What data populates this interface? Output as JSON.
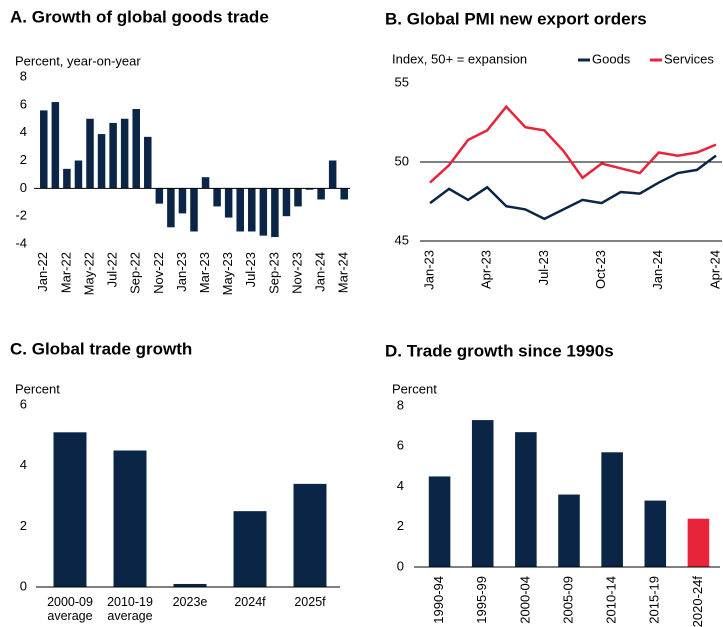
{
  "chart_data": [
    {
      "type": "bar",
      "title": "A. Growth of global goods trade",
      "y_label": "Percent, year-on-year",
      "categories": [
        "Jan-22",
        null,
        "Mar-22",
        null,
        "May-22",
        null,
        "Jul-22",
        null,
        "Sep-22",
        null,
        "Nov-22",
        null,
        "Jan-23",
        null,
        "Mar-23",
        null,
        "May-23",
        null,
        "Jul-23",
        null,
        "Sep-23",
        null,
        "Nov-23",
        null,
        "Jan-24",
        null,
        "Mar-24"
      ],
      "values": [
        5.6,
        6.2,
        1.4,
        2.0,
        5.0,
        3.9,
        4.7,
        5.0,
        5.7,
        3.7,
        -1.1,
        -2.8,
        -1.8,
        -3.1,
        0.8,
        -1.3,
        -2.1,
        -3.1,
        -3.1,
        -3.4,
        -3.5,
        -2.0,
        -1.3,
        -0.1,
        -0.8,
        2.0,
        -0.8
      ],
      "color": "#0b2546",
      "ylim": [
        -4,
        8
      ],
      "yticks": [
        -4,
        -2,
        0,
        2,
        4,
        6,
        8
      ]
    },
    {
      "type": "line",
      "title": "B. Global PMI new export orders",
      "y_label": "Index, 50+ = expansion",
      "categories": [
        "Jan-23",
        null,
        null,
        "Apr-23",
        null,
        null,
        "Jul-23",
        null,
        null,
        "Oct-23",
        null,
        null,
        "Jan-24",
        null,
        null,
        "Apr-24"
      ],
      "series": [
        {
          "name": "Goods",
          "color": "#0b2546",
          "values": [
            47.4,
            48.3,
            47.6,
            48.4,
            47.2,
            47.0,
            46.4,
            47.0,
            47.6,
            47.4,
            48.1,
            48.0,
            48.7,
            49.3,
            49.5,
            50.4
          ]
        },
        {
          "name": "Services",
          "color": "#e8233a",
          "values": [
            48.7,
            49.8,
            51.4,
            52.0,
            53.5,
            52.2,
            52.0,
            50.7,
            49.0,
            49.9,
            49.6,
            49.3,
            50.6,
            50.4,
            50.6,
            51.1
          ]
        }
      ],
      "ylim": [
        45,
        55
      ],
      "yticks": [
        45,
        50,
        55
      ],
      "reference_line": 50,
      "legend": "top-right"
    },
    {
      "type": "bar",
      "title": "C. Global trade growth",
      "y_label": "Percent",
      "categories": [
        "2000-09 average",
        "2010-19 average",
        "2023e",
        "2024f",
        "2025f"
      ],
      "values": [
        5.1,
        4.5,
        0.1,
        2.5,
        3.4
      ],
      "color": "#0b2546",
      "ylim": [
        0,
        6
      ],
      "yticks": [
        0,
        2,
        4,
        6
      ]
    },
    {
      "type": "bar",
      "title": "D. Trade growth since 1990s",
      "y_label": "Percent",
      "categories": [
        "1990-94",
        "1995-99",
        "2000-04",
        "2005-09",
        "2010-14",
        "2015-19",
        "2020-24f"
      ],
      "values": [
        4.5,
        7.3,
        6.7,
        3.6,
        5.7,
        3.3,
        2.4
      ],
      "colors": [
        "#0b2546",
        "#0b2546",
        "#0b2546",
        "#0b2546",
        "#0b2546",
        "#0b2546",
        "#e8233a"
      ],
      "ylim": [
        0,
        8
      ],
      "yticks": [
        0,
        2,
        4,
        6,
        8
      ]
    }
  ]
}
